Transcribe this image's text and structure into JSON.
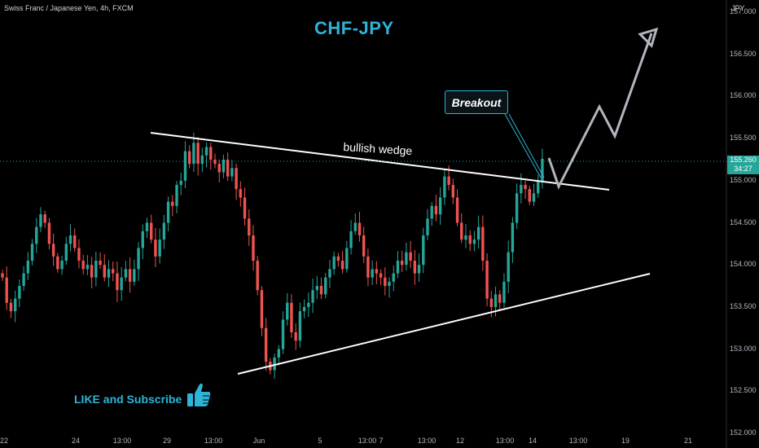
{
  "header": {
    "symbol": "Swiss Franc / Japanese Yen, 4h, FXCM",
    "title": "CHF-JPY",
    "currency": "JPY"
  },
  "annotations": {
    "breakout": "Breakout",
    "wedge": "bullish wedge",
    "like": "LIKE and Subscribe"
  },
  "price_badge": {
    "price": "155.260",
    "countdown": "34:27"
  },
  "colors": {
    "up": "#26a69a",
    "down": "#ef5350",
    "accent": "#2fb4d8",
    "lines": "#ffffff",
    "projection": "#b2b5be"
  },
  "icons": [
    "thumbs-up-icon"
  ],
  "chart_data": {
    "type": "candlestick",
    "title": "CHF-JPY",
    "ylabel": "JPY",
    "ylim": [
      152.0,
      157.0
    ],
    "yticks": [
      "157.000",
      "156.500",
      "156.000",
      "155.500",
      "155.000",
      "154.500",
      "154.000",
      "153.500",
      "153.000",
      "152.500",
      "152.000"
    ],
    "x_ticks": [
      "22",
      "24",
      "13:00",
      "29",
      "13:00",
      "Jun",
      "5",
      "13:00",
      "7",
      "13:00",
      "12",
      "13:00",
      "14",
      "13:00",
      "19",
      "21"
    ],
    "last_price": 155.26,
    "closes": [
      153.85,
      153.55,
      153.45,
      153.6,
      153.75,
      153.9,
      154.05,
      154.25,
      154.45,
      154.6,
      154.5,
      154.25,
      154.1,
      153.95,
      154.05,
      154.25,
      154.35,
      154.2,
      154.05,
      153.95,
      154.0,
      153.85,
      154.05,
      154.0,
      153.85,
      153.95,
      153.9,
      153.7,
      153.85,
      153.95,
      153.8,
      153.95,
      154.2,
      154.4,
      154.5,
      154.3,
      154.1,
      154.3,
      154.5,
      154.75,
      154.7,
      154.95,
      155.0,
      155.35,
      155.2,
      155.45,
      155.2,
      155.3,
      155.4,
      155.25,
      155.2,
      155.1,
      155.25,
      155.05,
      155.15,
      154.9,
      154.8,
      154.55,
      154.35,
      154.05,
      153.7,
      153.25,
      152.85,
      152.75,
      152.9,
      153.0,
      153.35,
      153.55,
      153.2,
      153.1,
      153.45,
      153.5,
      153.55,
      153.7,
      153.75,
      153.65,
      153.85,
      153.95,
      154.1,
      154.05,
      153.95,
      154.2,
      154.4,
      154.5,
      154.35,
      154.1,
      153.85,
      153.95,
      153.9,
      153.85,
      153.75,
      153.8,
      153.9,
      154.05,
      154.0,
      154.15,
      154.05,
      153.9,
      154.0,
      154.35,
      154.55,
      154.7,
      154.6,
      154.8,
      155.05,
      154.95,
      154.8,
      154.5,
      154.3,
      154.35,
      154.25,
      154.3,
      154.45,
      154.05,
      153.6,
      153.5,
      153.65,
      153.55,
      153.8,
      154.15,
      154.5,
      154.85,
      154.95,
      154.9,
      154.75,
      154.85,
      155.0,
      155.26
    ]
  }
}
